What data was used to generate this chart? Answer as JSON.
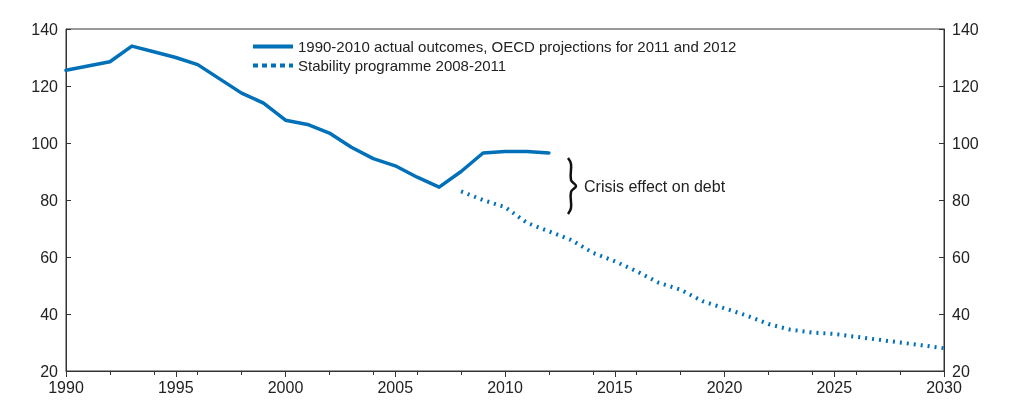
{
  "chart_data": {
    "type": "line",
    "xlim": [
      1990,
      2030
    ],
    "xticks": [
      1990,
      1995,
      2000,
      2005,
      2010,
      2015,
      2020,
      2025,
      2030
    ],
    "ylim": [
      20,
      140
    ],
    "yticks": [
      20,
      40,
      60,
      80,
      100,
      120,
      140
    ],
    "y2lim": [
      20,
      140
    ],
    "y2ticks": [
      20,
      40,
      60,
      80,
      100,
      120,
      140
    ],
    "legend": "top",
    "grid": false,
    "annotations": [
      "Crisis effect on debt"
    ],
    "series": [
      {
        "name": "1990-2010 actual outcomes, OECD projections for 2011 and 2012",
        "color": "#0070b8",
        "line_style": "solid",
        "x": [
          1990,
          1991,
          1992,
          1993,
          1994,
          1995,
          1996,
          1997,
          1998,
          1999,
          2000,
          2001,
          2002,
          2003,
          2004,
          2005,
          2006,
          2007,
          2008,
          2009,
          2010,
          2011,
          2012
        ],
        "values": [
          125.5,
          127,
          128.5,
          134,
          132,
          130,
          127.5,
          122.5,
          117.5,
          114,
          108,
          106.5,
          103.5,
          98.5,
          94.5,
          92,
          88,
          84.5,
          90,
          96.5,
          97,
          97,
          96.5
        ]
      },
      {
        "name": "Stability programme 2008-2011",
        "color": "#0070b8",
        "line_style": "dotted",
        "x": [
          2008,
          2009,
          2010,
          2011,
          2012,
          2013,
          2014,
          2015,
          2016,
          2017,
          2018,
          2019,
          2020,
          2021,
          2022,
          2023,
          2024,
          2025,
          2026,
          2027,
          2028,
          2029,
          2030
        ],
        "values": [
          83,
          80,
          77.5,
          72,
          69,
          66,
          61.5,
          58.5,
          55,
          51,
          48.5,
          44.5,
          42,
          39.5,
          36.5,
          34.5,
          33.5,
          33,
          32,
          31,
          30,
          29,
          28
        ]
      }
    ]
  }
}
